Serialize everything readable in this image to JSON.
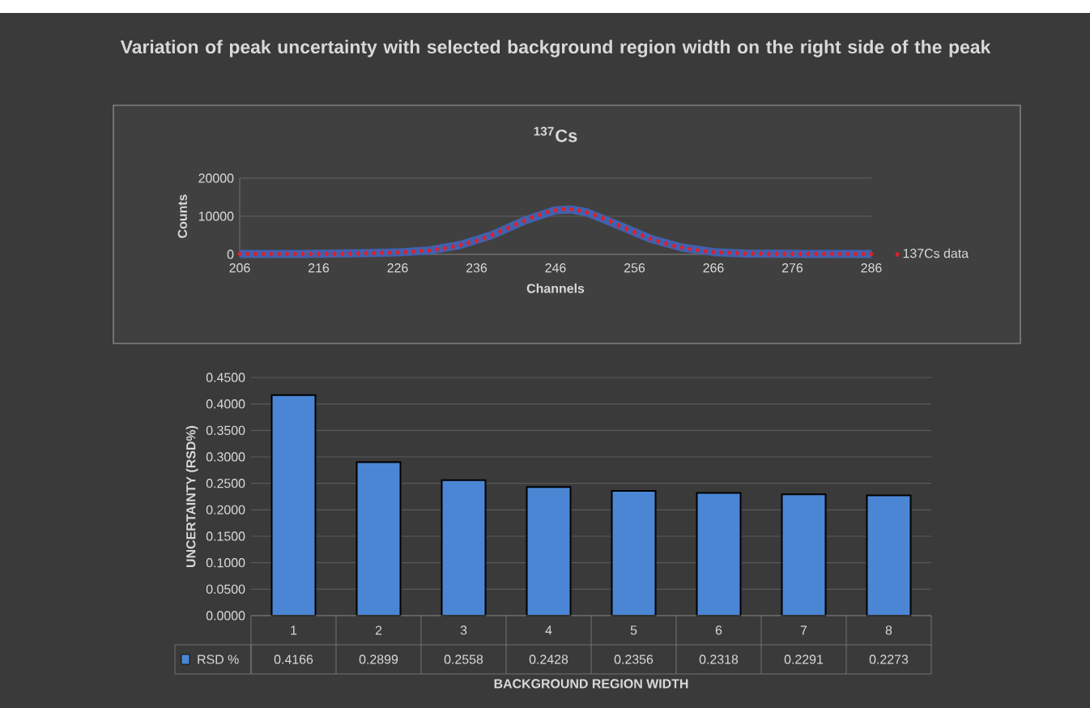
{
  "chart_data": [
    {
      "type": "scatter",
      "title": "Variation of peak uncertainty with selected background region width on the right side of the peak",
      "subtitle": "$^{137}$Cs",
      "xlabel": "Channels",
      "ylabel": "Counts",
      "xlim": [
        206,
        286
      ],
      "xticks": [
        206,
        216,
        226,
        236,
        246,
        256,
        266,
        276,
        286
      ],
      "ylim": [
        0,
        20000
      ],
      "yticks": [
        0,
        10000,
        20000
      ],
      "grid": "y",
      "legend": "right",
      "series": [
        {
          "type": "line",
          "marker": "none",
          "color": "#3f62b0",
          "x": [
            206,
            214,
            222,
            226,
            230,
            234,
            238,
            242,
            246,
            248,
            250,
            254,
            258,
            262,
            266,
            270,
            278,
            286
          ],
          "values": [
            100,
            100,
            300,
            500,
            1000,
            2500,
            5100,
            8800,
            11600,
            11800,
            11000,
            7600,
            4100,
            1800,
            600,
            200,
            100,
            100
          ]
        },
        {
          "name": "137Cs data",
          "type": "scatter",
          "marker": "diamond",
          "color": "#e0202a",
          "x": [
            206,
            207,
            208,
            209,
            210,
            211,
            212,
            213,
            214,
            215,
            216,
            217,
            218,
            219,
            220,
            221,
            222,
            223,
            224,
            225,
            226,
            227,
            228,
            229,
            230,
            231,
            232,
            233,
            234,
            235,
            236,
            237,
            238,
            239,
            240,
            241,
            242,
            243,
            244,
            245,
            246,
            247,
            248,
            249,
            250,
            251,
            252,
            253,
            254,
            255,
            256,
            257,
            258,
            259,
            260,
            261,
            262,
            263,
            264,
            265,
            266,
            267,
            268,
            269,
            270,
            271,
            272,
            273,
            274,
            275,
            276,
            277,
            278,
            279,
            280,
            281,
            282,
            283,
            284,
            285,
            286
          ],
          "values": [
            100,
            100,
            100,
            100,
            100,
            100,
            100,
            100,
            100,
            100,
            100,
            100,
            100,
            100,
            200,
            200,
            300,
            300,
            400,
            400,
            500,
            600,
            700,
            900,
            1000,
            1300,
            1600,
            2000,
            2500,
            3000,
            3600,
            4300,
            5100,
            6000,
            6900,
            7900,
            8800,
            9700,
            10400,
            11100,
            11600,
            11900,
            11800,
            11500,
            11000,
            10300,
            9500,
            8600,
            7600,
            6700,
            5800,
            4900,
            4100,
            3400,
            2800,
            2200,
            1800,
            1400,
            1100,
            800,
            600,
            500,
            400,
            300,
            200,
            200,
            200,
            100,
            100,
            100,
            100,
            100,
            100,
            100,
            100,
            100,
            100,
            100,
            100,
            100,
            100
          ]
        }
      ]
    },
    {
      "type": "bar",
      "xlabel": "BACKGROUND REGION WIDTH",
      "ylabel": "UNCERTAINTY (RSD%)",
      "categories": [
        "1",
        "2",
        "3",
        "4",
        "5",
        "6",
        "7",
        "8"
      ],
      "ylim": [
        0,
        0.45
      ],
      "yticks": [
        {
          "value": 0,
          "label": "0.0000"
        },
        {
          "value": 0.05,
          "label": "0.0500"
        },
        {
          "value": 0.1,
          "label": "0.1000"
        },
        {
          "value": 0.15,
          "label": "0.1500"
        },
        {
          "value": 0.2,
          "label": "0.2000"
        },
        {
          "value": 0.25,
          "label": "0.2500"
        },
        {
          "value": 0.3,
          "label": "0.3000"
        },
        {
          "value": 0.35,
          "label": "0.3500"
        },
        {
          "value": 0.4,
          "label": "0.4000"
        },
        {
          "value": 0.45,
          "label": "0.4500"
        }
      ],
      "grid": "y",
      "legend": "bottom",
      "data_labels": true,
      "series": [
        {
          "name": "RSD %",
          "color": "#4a86d4",
          "values": [
            0.4166,
            0.2899,
            0.2558,
            0.2428,
            0.2356,
            0.2318,
            0.2291,
            0.2273
          ]
        }
      ]
    }
  ]
}
